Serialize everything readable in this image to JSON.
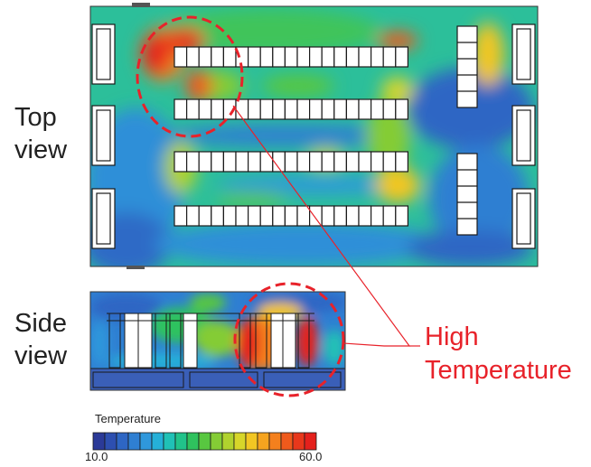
{
  "labels": {
    "top_view": "Top\nview",
    "side_view": "Side\nview",
    "annotation_line1": "High",
    "annotation_line2": "Temperature"
  },
  "legend": {
    "title": "Temperature",
    "min_label": "10.0",
    "max_label": "60.0",
    "colors": [
      "#2b3a98",
      "#2d4fb0",
      "#2e66c4",
      "#2f7fd2",
      "#2f98dc",
      "#25b0d8",
      "#20c1b6",
      "#21c38a",
      "#2fc25e",
      "#58c740",
      "#84cc35",
      "#b0d22e",
      "#d7d62a",
      "#f2c623",
      "#f6a41f",
      "#f4801d",
      "#ef5a1c",
      "#e8371b",
      "#e4201c"
    ]
  },
  "colors": {
    "annotation": "#e8222a",
    "hot": "#e8261c",
    "cool": "#2b4fb5",
    "mid": "#2cc07a"
  }
}
